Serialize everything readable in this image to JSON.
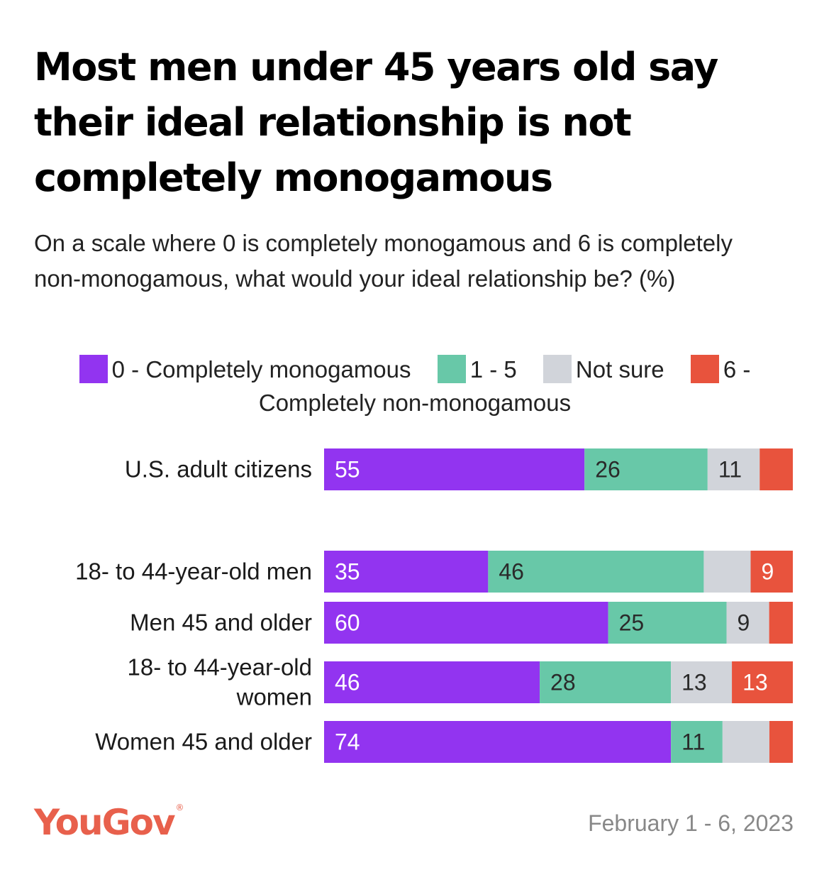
{
  "title": "Most men under 45 years old say their ideal relationship is not completely monogamous",
  "subtitle": "On a scale where 0 is completely monogamous and 6 is completely non-monogamous, what would your ideal relationship be? (%)",
  "source_date": "February 1 - 6, 2023",
  "brand": {
    "name": "YouGov",
    "mark": "®"
  },
  "colors": {
    "purple": "#9234f0",
    "teal": "#68c8a8",
    "gray": "#d1d4da",
    "red": "#e8533d"
  },
  "chart_data": {
    "type": "bar",
    "orientation": "horizontal",
    "stacked": true,
    "legend": "top",
    "categories": [
      "U.S. adult citizens",
      "18- to 44-year-old men",
      "Men 45 and older",
      "18- to 44-year-old women",
      "Women 45 and older"
    ],
    "series": [
      {
        "name": "0 - Completely monogamous",
        "color": "#9234f0",
        "values": [
          55,
          35,
          60,
          46,
          74
        ]
      },
      {
        "name": "1 - 5",
        "color": "#68c8a8",
        "values": [
          26,
          46,
          25,
          28,
          11
        ]
      },
      {
        "name": "Not sure",
        "color": "#d1d4da",
        "values": [
          11,
          10,
          9,
          13,
          10
        ]
      },
      {
        "name": "6 - Completely non-monogamous",
        "color": "#e8533d",
        "values": [
          7,
          9,
          5,
          13,
          5
        ]
      }
    ],
    "data_labels": [
      [
        "55",
        "26",
        "11",
        ""
      ],
      [
        "35",
        "46",
        "",
        "9"
      ],
      [
        "60",
        "25",
        "9",
        ""
      ],
      [
        "46",
        "28",
        "13",
        "13"
      ],
      [
        "74",
        "11",
        "",
        ""
      ]
    ]
  }
}
